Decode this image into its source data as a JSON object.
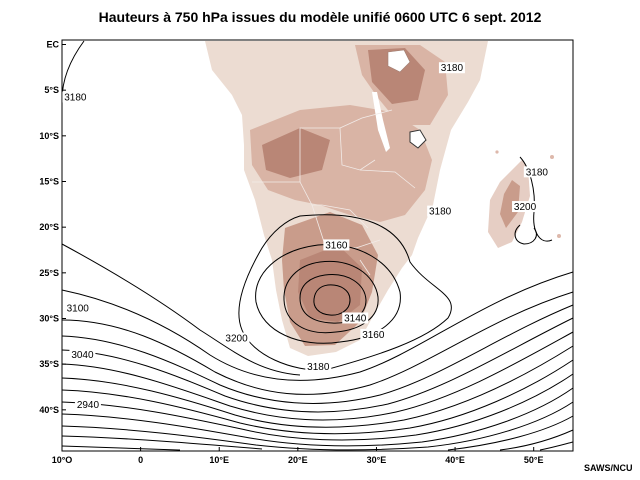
{
  "title": "Hauteurs à 750 hPa issues du modèle unifié 0600 UTC 6 sept. 2012",
  "credit": "SAWS/NCU",
  "map": {
    "lon_range": [
      -10,
      55
    ],
    "lat_range": [
      -45,
      0
    ],
    "colors": {
      "terrain_low": "#ecdcd2",
      "terrain_mid": "#d9b4a5",
      "terrain_high": "#b98676",
      "water": "#ffffff",
      "contour": "#000000",
      "border": "#f2ebe8"
    },
    "lat_ticks": [
      {
        "lat": 0,
        "label": "EC"
      },
      {
        "lat": -5,
        "label": "5°S"
      },
      {
        "lat": -10,
        "label": "10°S"
      },
      {
        "lat": -15,
        "label": "15°S"
      },
      {
        "lat": -20,
        "label": "20°S"
      },
      {
        "lat": -25,
        "label": "25°S"
      },
      {
        "lat": -30,
        "label": "30°S"
      },
      {
        "lat": -35,
        "label": "35°S"
      },
      {
        "lat": -40,
        "label": "40°S"
      }
    ],
    "lon_ticks": [
      {
        "lon": -10,
        "label": "10°O"
      },
      {
        "lon": 0,
        "label": "0"
      },
      {
        "lon": 10,
        "label": "10°E"
      },
      {
        "lon": 20,
        "label": "20°E"
      },
      {
        "lon": 30,
        "label": "30°E"
      },
      {
        "lon": 40,
        "label": "40°E"
      },
      {
        "lon": 50,
        "label": "50°E"
      }
    ],
    "contour_labels": [
      {
        "value": "3180",
        "lon": -8.3,
        "lat": -6.4
      },
      {
        "value": "3180",
        "lon": 38.1,
        "lat": -18.9
      },
      {
        "value": "3180",
        "lon": 39.6,
        "lat": -3.2
      },
      {
        "value": "3180",
        "lon": 50.4,
        "lat": -14.6
      },
      {
        "value": "3200",
        "lon": 48.9,
        "lat": -18.4
      },
      {
        "value": "3160",
        "lon": 24.9,
        "lat": -22.6
      },
      {
        "value": "3140",
        "lon": 27.3,
        "lat": -30.6
      },
      {
        "value": "3160",
        "lon": 29.6,
        "lat": -32.4
      },
      {
        "value": "3180",
        "lon": 22.6,
        "lat": -35.9
      },
      {
        "value": "3200",
        "lon": 12.2,
        "lat": -32.8
      },
      {
        "value": "3100",
        "lon": -8.0,
        "lat": -29.5
      },
      {
        "value": "3040",
        "lon": -7.4,
        "lat": -34.6
      },
      {
        "value": "2940",
        "lon": -6.7,
        "lat": -40.1
      }
    ]
  }
}
